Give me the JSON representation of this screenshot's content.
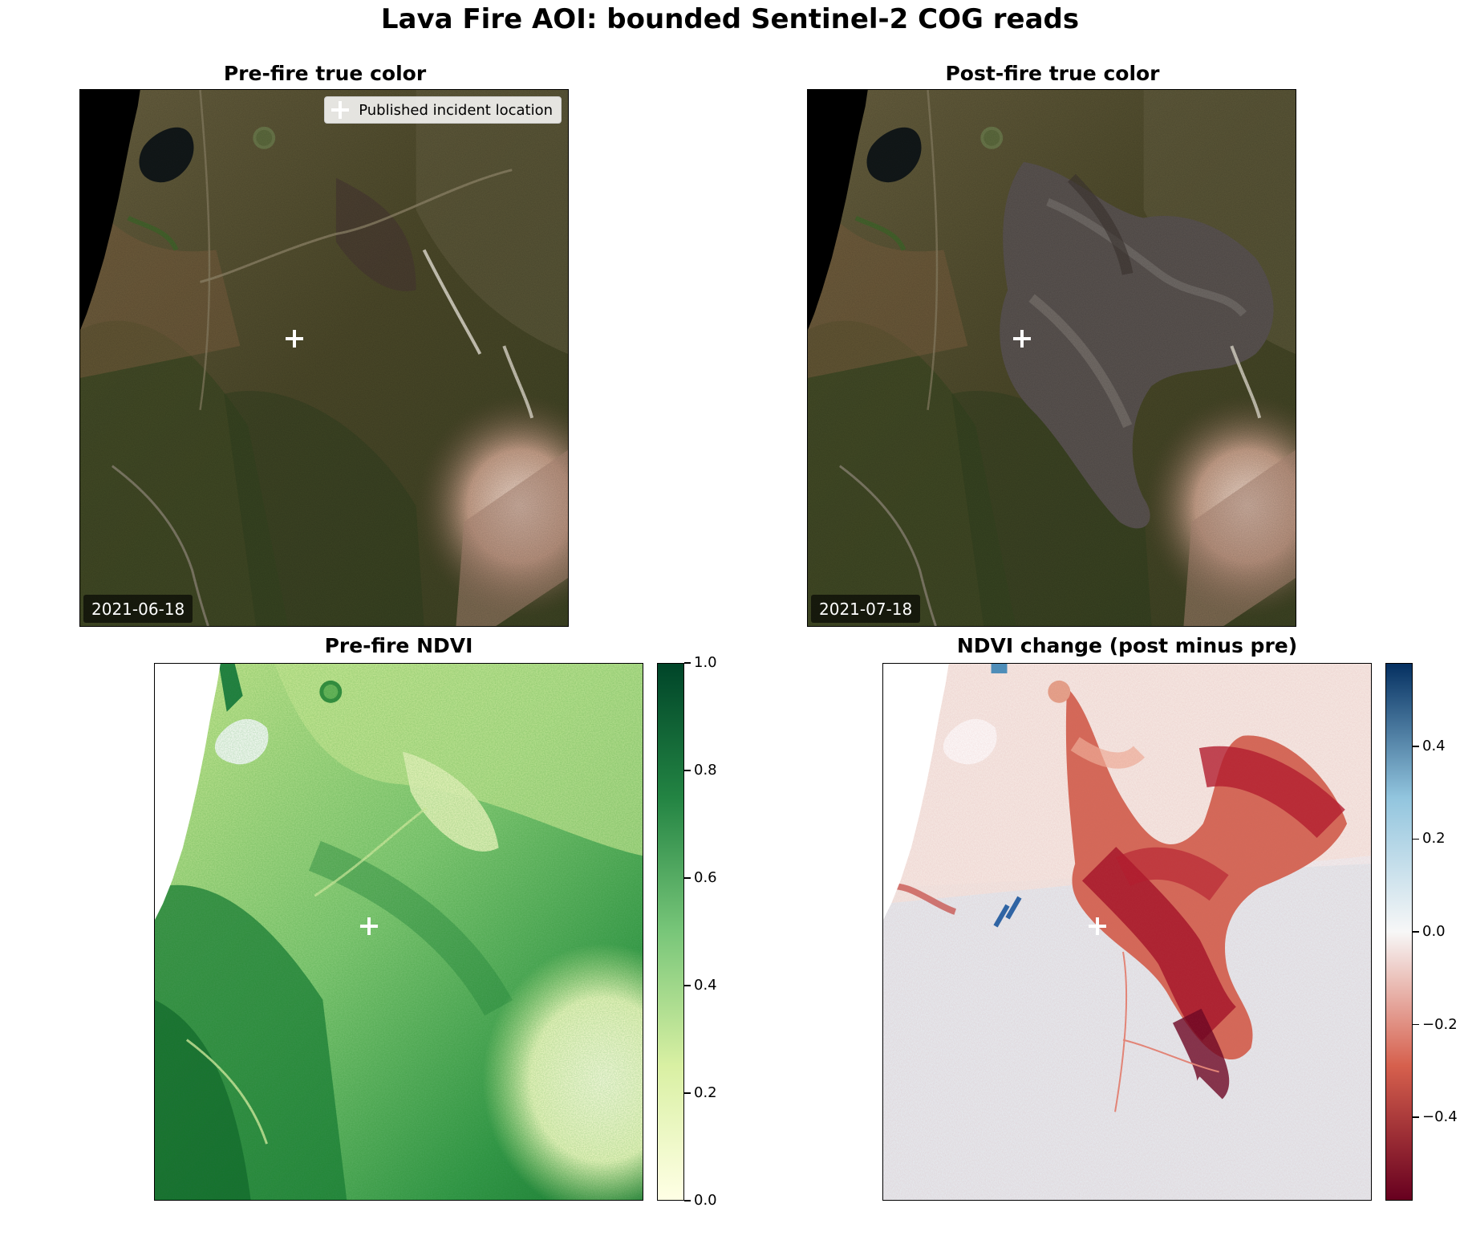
{
  "figure": {
    "title": "Lava Fire AOI: bounded Sentinel-2 COG reads"
  },
  "panels": {
    "pre_true_color": {
      "title": "Pre-fire true color",
      "date": "2021-06-18",
      "legend_label": "Published incident location"
    },
    "post_true_color": {
      "title": "Post-fire true color",
      "date": "2021-07-18"
    },
    "pre_ndvi": {
      "title": "Pre-fire NDVI",
      "colorbar": {
        "colormap": "YlGn",
        "ticks": [
          "0.0",
          "0.2",
          "0.4",
          "0.6",
          "0.8",
          "1.0"
        ],
        "range": [
          0.0,
          1.0
        ],
        "colors": [
          "#ffffe5",
          "#d9f0a3",
          "#78c679",
          "#238443",
          "#004529"
        ]
      }
    },
    "ndvi_change": {
      "title": "NDVI change (post minus pre)",
      "colorbar": {
        "colormap": "RdBu",
        "ticks": [
          "−0.4",
          "−0.2",
          "0.0",
          "0.2",
          "0.4"
        ],
        "range": [
          -0.58,
          0.58
        ],
        "colors": [
          "#67001f",
          "#d6604d",
          "#f7f7f7",
          "#92c5de",
          "#053061"
        ]
      }
    }
  },
  "chart_data": {
    "type": "heatmap",
    "incident_marker": "white plus",
    "ndvi_range": [
      0.0,
      1.0
    ],
    "ndvi_change_range": [
      -0.58,
      0.58
    ]
  }
}
